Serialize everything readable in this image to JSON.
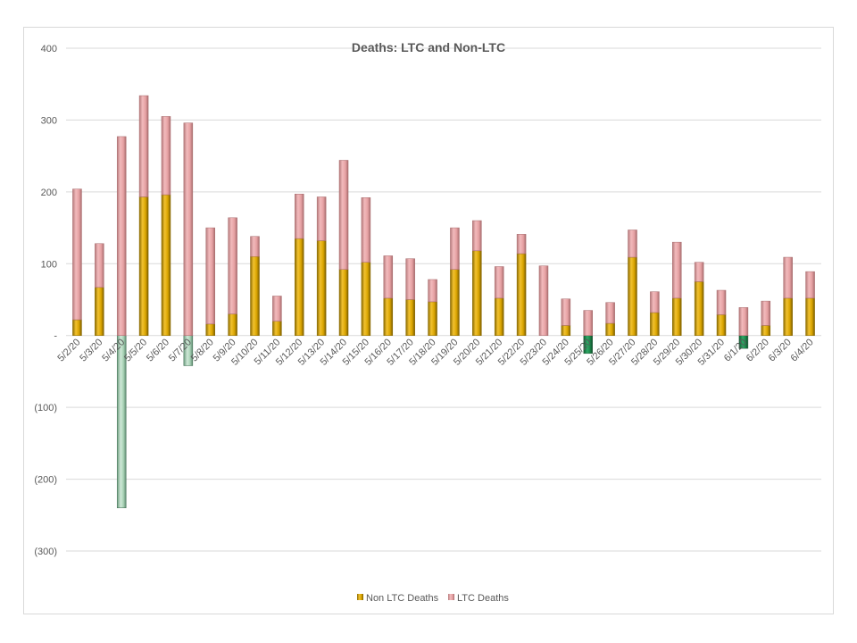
{
  "chart_data": {
    "type": "bar",
    "stacked": true,
    "title": "Deaths: LTC and Non-LTC",
    "xlabel": "",
    "ylabel": "",
    "ylim": [
      -300,
      400
    ],
    "yticks": [
      400,
      300,
      200,
      100,
      0,
      -100,
      -200,
      -300
    ],
    "ytick_labels": [
      "400",
      "300",
      "200",
      "100",
      "-",
      "(100)",
      "(200)",
      "(300)"
    ],
    "grid": true,
    "legend_position": "bottom",
    "categories": [
      "5/2/20",
      "5/3/20",
      "5/4/20",
      "5/5/20",
      "5/6/20",
      "5/7/20",
      "5/8/20",
      "5/9/20",
      "5/10/20",
      "5/11/20",
      "5/12/20",
      "5/13/20",
      "5/14/20",
      "5/15/20",
      "5/16/20",
      "5/17/20",
      "5/18/20",
      "5/19/20",
      "5/20/20",
      "5/21/20",
      "5/22/20",
      "5/23/20",
      "5/24/20",
      "5/25/20",
      "5/26/20",
      "5/27/20",
      "5/28/20",
      "5/29/20",
      "5/30/20",
      "5/31/20",
      "6/1/20",
      "6/2/20",
      "6/3/20",
      "6/4/20"
    ],
    "series": [
      {
        "name": "Non LTC Deaths",
        "color": "#d9a400",
        "negative_color": "#1e8a4c",
        "values": [
          22,
          67,
          -240,
          193,
          196,
          -42,
          16,
          30,
          110,
          20,
          135,
          132,
          92,
          102,
          52,
          50,
          47,
          92,
          118,
          52,
          114,
          0,
          14,
          -25,
          17,
          109,
          32,
          52,
          75,
          29,
          -18,
          14,
          52,
          52
        ]
      },
      {
        "name": "LTC Deaths",
        "color": "#e6a1a3",
        "values": [
          182,
          61,
          277,
          141,
          109,
          296,
          134,
          134,
          28,
          35,
          62,
          61,
          152,
          90,
          59,
          57,
          31,
          58,
          42,
          44,
          27,
          97,
          37,
          35,
          29,
          38,
          29,
          78,
          27,
          34,
          39,
          34,
          57,
          37
        ]
      }
    ]
  }
}
